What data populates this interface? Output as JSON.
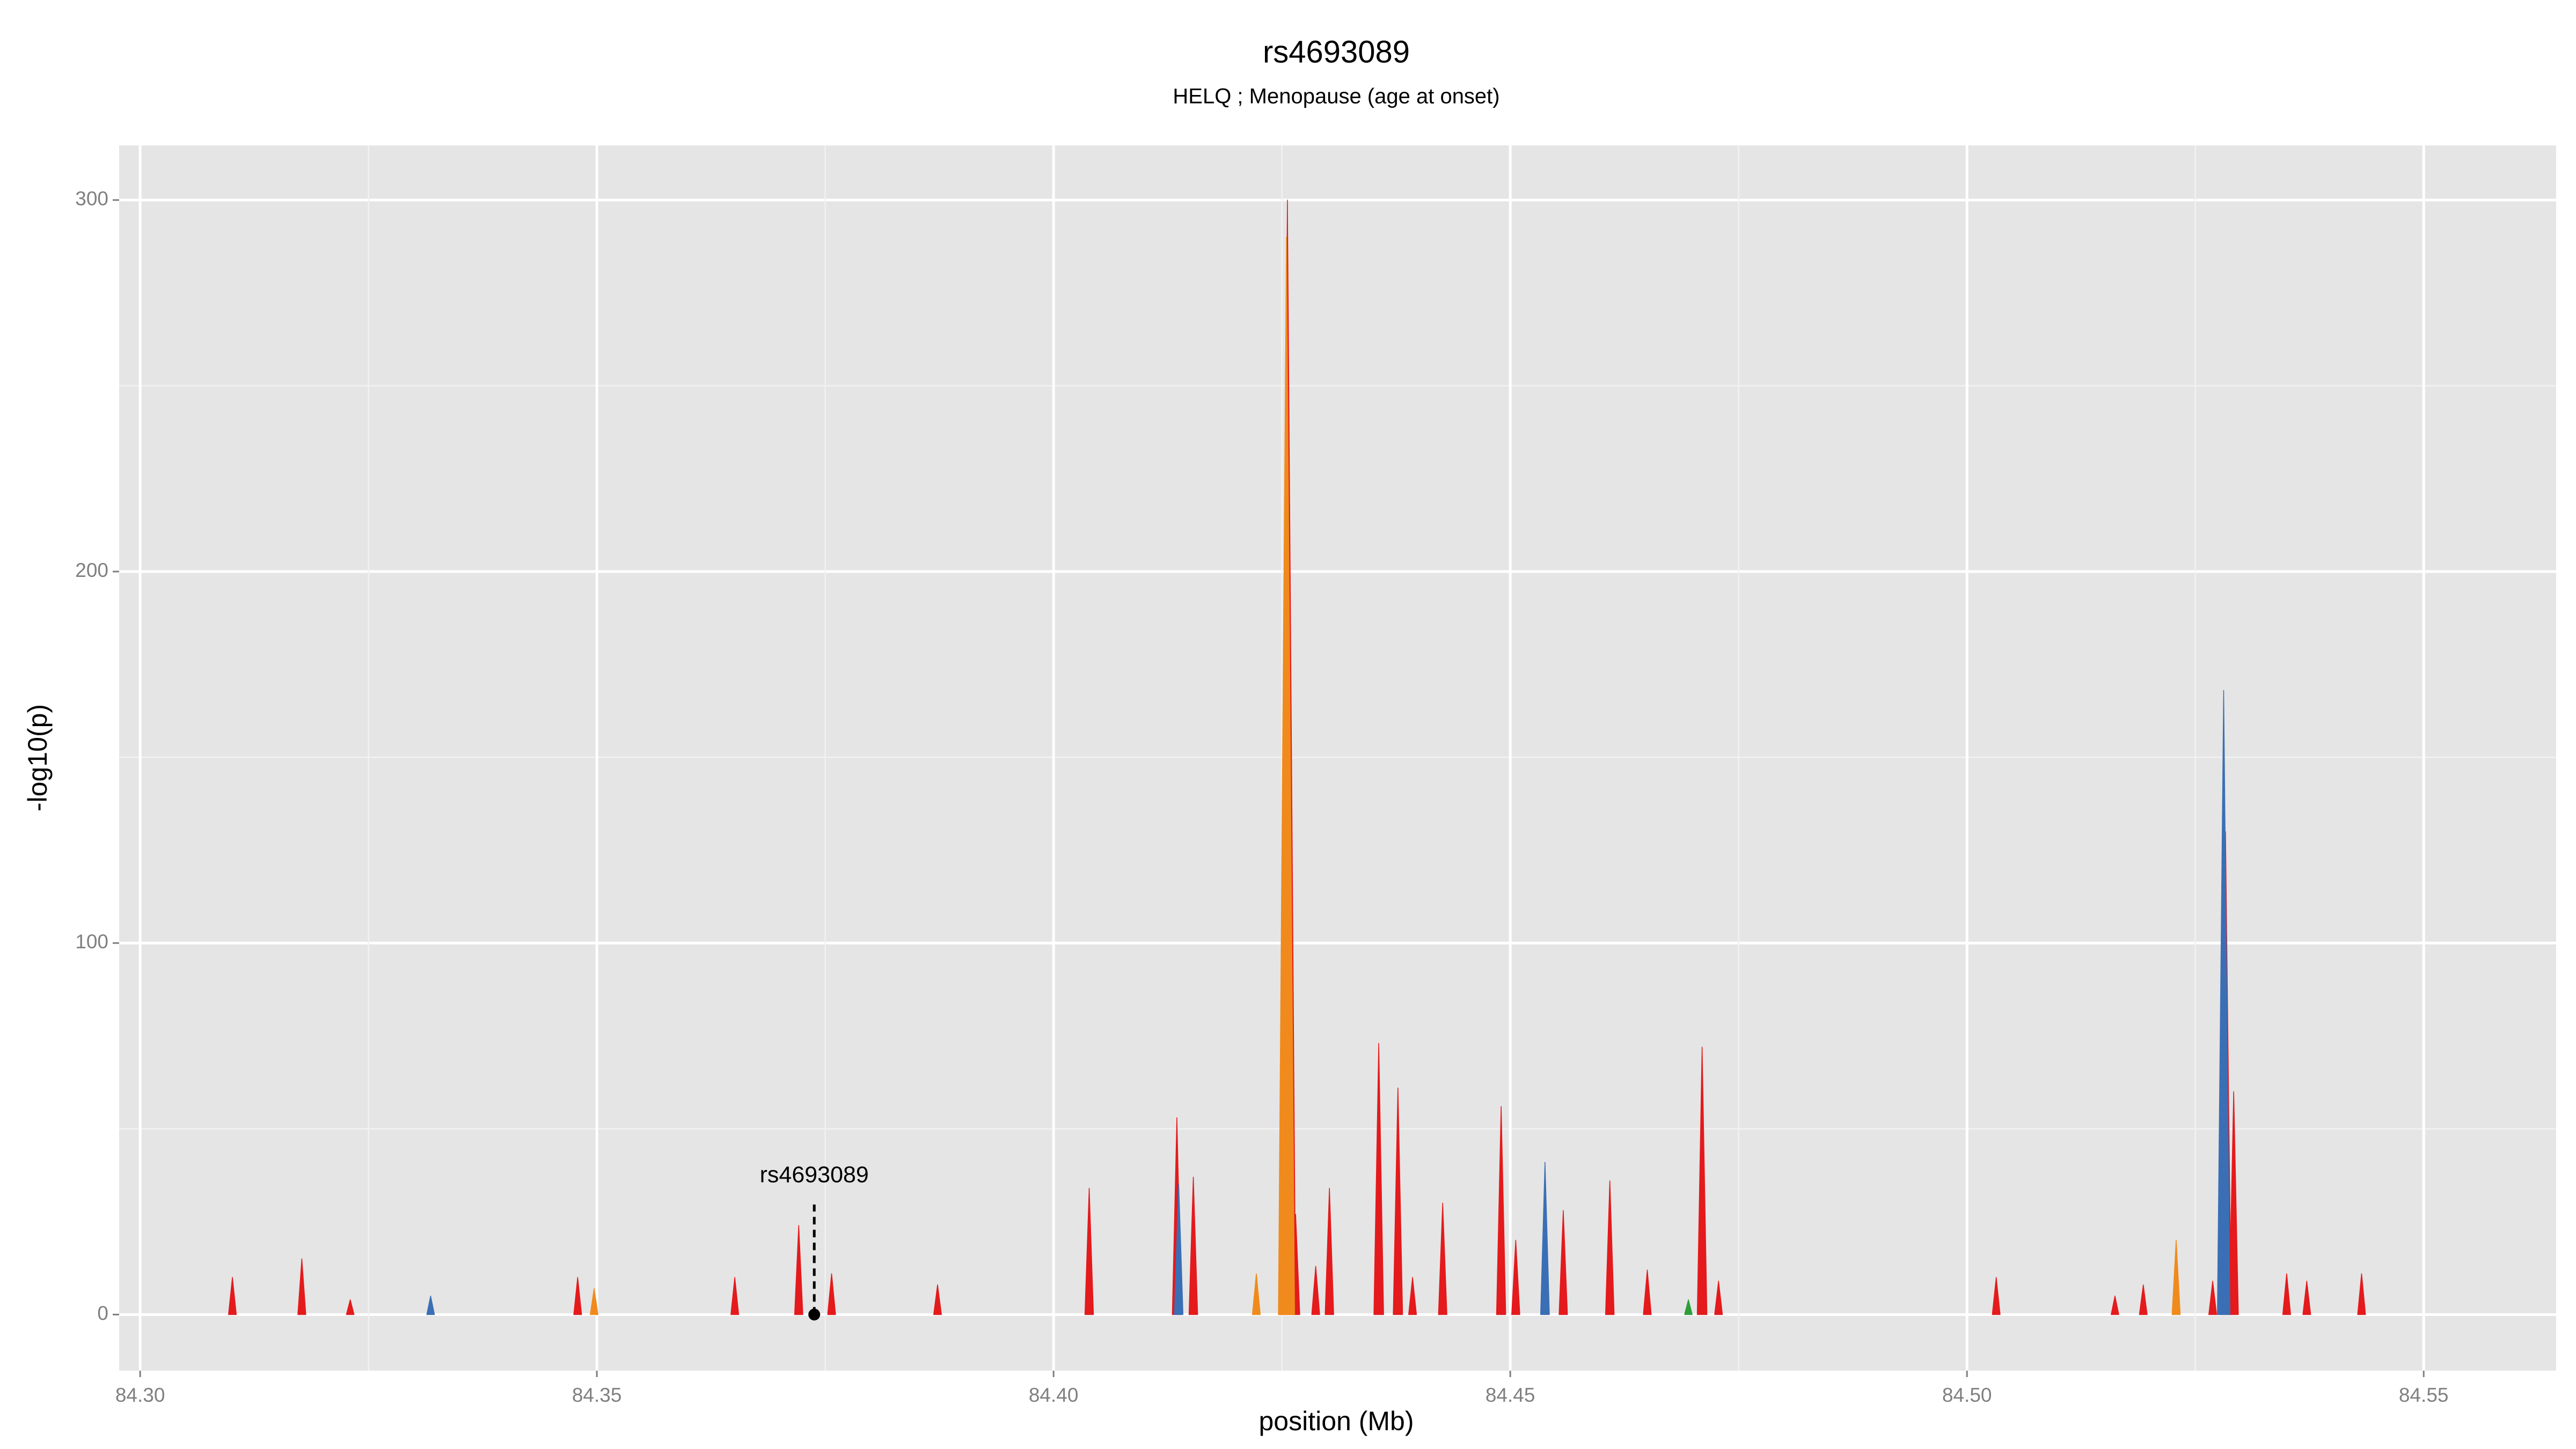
{
  "chart_data": {
    "type": "spike",
    "title": "rs4693089",
    "subtitle": "HELQ ; Menopause (age at onset)",
    "x_label": "position (Mb)",
    "y_label": "-log10(p)",
    "xlim": [
      84.2977,
      84.5645
    ],
    "ylim": [
      -15.1,
      314.7
    ],
    "xticks": [
      {
        "value": 84.3,
        "label": "84.30"
      },
      84.35,
      {
        "value": 84.4,
        "label": "84.40"
      },
      84.45,
      {
        "value": 84.5,
        "label": "84.50"
      },
      84.55
    ],
    "yticks": [
      0,
      100,
      200,
      300
    ],
    "grid": true,
    "series": [
      {
        "color": "#3a6fb5",
        "x": [
          84.3318,
          84.4137,
          84.4538,
          84.5281
        ],
        "values": [
          5,
          35,
          41,
          168
        ]
      },
      {
        "color": "#f08a1c",
        "x": [
          84.3497,
          84.4222,
          84.4255,
          84.5229
        ],
        "values": [
          7,
          11,
          290,
          20
        ]
      },
      {
        "color": "#2e9e3a",
        "x": [
          84.4695
        ],
        "values": [
          4
        ]
      },
      {
        "color": "#e41a1c",
        "x": [
          84.3101,
          84.3177,
          84.323,
          84.3479,
          84.3651,
          84.3721,
          84.3757,
          84.3873,
          84.4039,
          84.4135,
          84.4153,
          84.4256,
          84.4265,
          84.4287,
          84.4302,
          84.4356,
          84.4377,
          84.4393,
          84.4426,
          84.449,
          84.4506,
          84.4558,
          84.4609,
          84.465,
          84.471,
          84.4728,
          84.5032,
          84.5162,
          84.5193,
          84.5269,
          84.5283,
          84.5292,
          84.535,
          84.5372,
          84.5432
        ],
        "values": [
          10,
          15,
          4,
          10,
          10,
          24,
          11,
          8,
          34,
          53,
          37,
          300,
          27,
          13,
          34,
          73,
          61,
          10,
          30,
          56,
          20,
          28,
          36,
          12,
          72,
          9,
          10,
          5,
          8,
          9,
          130,
          60,
          11,
          9,
          11
        ]
      }
    ],
    "annotation": {
      "text": "rs4693089",
      "x": 84.3738,
      "y": 0
    }
  }
}
